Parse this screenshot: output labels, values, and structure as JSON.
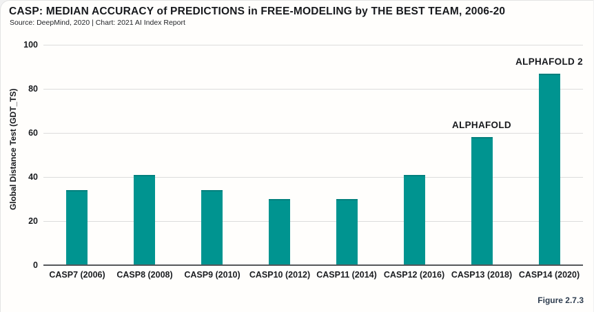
{
  "header": {
    "title": "CASP: MEDIAN ACCURACY of PREDICTIONS in FREE-MODELING by THE BEST TEAM, 2006-20",
    "source": "Source: DeepMind, 2020 | Chart: 2021 AI Index Report"
  },
  "figure_label": "Figure 2.7.3",
  "chart_data": {
    "type": "bar",
    "title": "CASP: MEDIAN ACCURACY of PREDICTIONS in FREE-MODELING by THE BEST TEAM, 2006-20",
    "subtitle": "Source: DeepMind, 2020 | Chart: 2021 AI Index Report",
    "categories": [
      "CASP7 (2006)",
      "CASP8 (2008)",
      "CASP9 (2010)",
      "CASP10 (2012)",
      "CASP11 (2014)",
      "CASP12 (2016)",
      "CASP13 (2018)",
      "CASP14 (2020)"
    ],
    "values": [
      34,
      41,
      34,
      30,
      30,
      41,
      58,
      87
    ],
    "xlabel": "",
    "ylabel": "Global Distance Test (GDT_TS)",
    "ylim": [
      0,
      100
    ],
    "yticks": [
      0,
      20,
      40,
      60,
      80,
      100
    ],
    "grid": true,
    "legend": "none",
    "bar_color": "#009490",
    "annotations": [
      {
        "category_index": 6,
        "text": "ALPHAFOLD"
      },
      {
        "category_index": 7,
        "text": "ALPHAFOLD 2"
      }
    ]
  },
  "colors": {
    "bar": "#009490",
    "bar_top_edge": "#00807d",
    "gridline": "#dcdcdc",
    "baseline": "#55575a",
    "text": "#17191d",
    "figure_label": "#2e3d4f",
    "background": "#fffefc"
  }
}
